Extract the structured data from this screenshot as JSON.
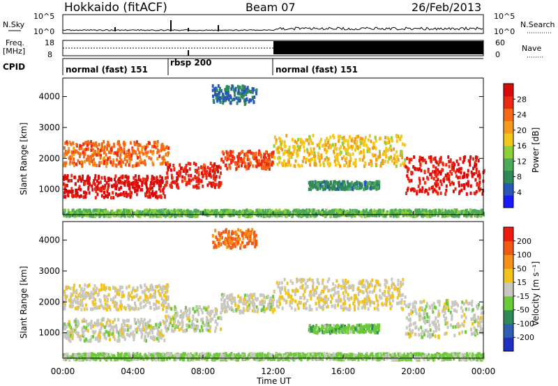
{
  "header": {
    "station": "Hokkaido (fitACF)",
    "beam": "Beam 07",
    "date": "26/Feb/2013"
  },
  "top_panels": {
    "nsky_label": "N.Sky",
    "nsky_ticks": [
      "10^5",
      "10^0"
    ],
    "nsearch_label": "N.Search",
    "nsearch_ticks": [
      "10^5",
      "10^0"
    ],
    "freq_label": "Freq.",
    "freq_unit": "[MHz]",
    "freq_ticks": [
      "18",
      "8"
    ],
    "nave_label": "Nave",
    "nave_ticks": [
      "60",
      "0"
    ],
    "cpid_label": "CPID",
    "cpid_segments": [
      {
        "label": "normal (fast) 151",
        "start": 0,
        "end": 6
      },
      {
        "label": "rbsp 200",
        "start": 6,
        "end": 12
      },
      {
        "label": "normal (fast) 151",
        "start": 12,
        "end": 24
      }
    ]
  },
  "chart_data": [
    {
      "type": "heatmap",
      "xlabel": "Time UT",
      "ylabel": "Slant Range [km]",
      "xlim": [
        0,
        24
      ],
      "ylim": [
        180,
        4600
      ],
      "x_ticks": [
        "00:00",
        "04:00",
        "08:00",
        "12:00",
        "16:00",
        "20:00",
        "00:00"
      ],
      "y_ticks": [
        "1000",
        "2000",
        "3000",
        "4000"
      ],
      "colorbar": {
        "label": "Power [dB]",
        "ticks": [
          "4",
          "8",
          "12",
          "16",
          "20",
          "24",
          "28"
        ],
        "range": [
          0,
          32
        ],
        "colors": [
          "#1a1aff",
          "#2857b8",
          "#2e8b57",
          "#4daa5a",
          "#8dd13a",
          "#f2c81e",
          "#f59b1b",
          "#f46a16",
          "#ea2a12",
          "#d80a0a"
        ]
      },
      "scatter_bands": [
        {
          "t0": 0,
          "t1": 5.8,
          "r0": 780,
          "r1": 1500,
          "value": 30
        },
        {
          "t0": 5.8,
          "t1": 9,
          "r0": 1100,
          "r1": 1900,
          "value": 28
        },
        {
          "t0": 9,
          "t1": 12,
          "r0": 1700,
          "r1": 2300,
          "value": 26
        },
        {
          "t0": 12,
          "t1": 19.5,
          "r0": 1800,
          "r1": 2800,
          "value": 18
        },
        {
          "t0": 19.5,
          "t1": 24,
          "r0": 900,
          "r1": 2100,
          "value": 29
        },
        {
          "t0": 14,
          "t1": 18,
          "r0": 1050,
          "r1": 1300,
          "value": 8
        },
        {
          "t0": 0,
          "t1": 6,
          "r0": 1800,
          "r1": 2600,
          "value": 24
        },
        {
          "t0": 8.5,
          "t1": 11,
          "r0": 3800,
          "r1": 4400,
          "value": 6
        },
        {
          "t0": 0,
          "t1": 24,
          "r0": 180,
          "r1": 380,
          "value": 12
        }
      ]
    },
    {
      "type": "heatmap",
      "xlabel": "Time UT",
      "ylabel": "Slant Range [km]",
      "xlim": [
        0,
        24
      ],
      "ylim": [
        180,
        4600
      ],
      "x_ticks": [
        "00:00",
        "04:00",
        "08:00",
        "12:00",
        "16:00",
        "20:00",
        "00:00"
      ],
      "y_ticks": [
        "1000",
        "2000",
        "3000",
        "4000"
      ],
      "colorbar": {
        "label": "Velocity [m s⁻¹]",
        "ticks": [
          "200",
          "100",
          "50",
          "15",
          "-15",
          "-50",
          "-100",
          "-200"
        ],
        "range": [
          -250,
          250
        ],
        "colors": [
          "#2030c0",
          "#2e5fb0",
          "#2e8b57",
          "#6cc93a",
          "#c8c8c0",
          "#f2c21e",
          "#f59018",
          "#f25a14",
          "#ee1a10"
        ]
      },
      "scatter_bands": [
        {
          "t0": 0,
          "t1": 5.8,
          "r0": 780,
          "r1": 1500,
          "value": 0
        },
        {
          "t0": 5.8,
          "t1": 9,
          "r0": 1100,
          "r1": 1900,
          "value": 0
        },
        {
          "t0": 9,
          "t1": 12,
          "r0": 1700,
          "r1": 2300,
          "value": 0
        },
        {
          "t0": 12,
          "t1": 19.5,
          "r0": 1800,
          "r1": 2800,
          "value": 25
        },
        {
          "t0": 19.5,
          "t1": 24,
          "r0": 900,
          "r1": 2100,
          "value": 0
        },
        {
          "t0": 14,
          "t1": 18,
          "r0": 1050,
          "r1": 1300,
          "value": -60
        },
        {
          "t0": 0,
          "t1": 6,
          "r0": 1800,
          "r1": 2600,
          "value": 20
        },
        {
          "t0": 8.5,
          "t1": 11,
          "r0": 3800,
          "r1": 4400,
          "value": 150
        },
        {
          "t0": 0,
          "t1": 24,
          "r0": 180,
          "r1": 380,
          "value": -40
        }
      ]
    }
  ]
}
